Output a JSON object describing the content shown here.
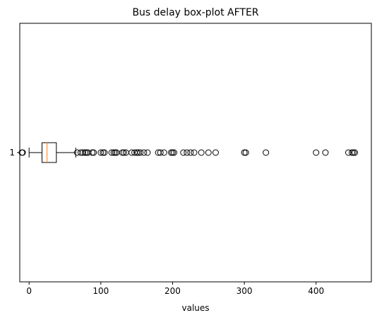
{
  "chart_data": {
    "type": "boxplot",
    "orientation": "horizontal",
    "title": "Bus delay box-plot AFTER",
    "xlabel": "values",
    "ylabel": "",
    "xlim": [
      -13,
      477
    ],
    "xticks": [
      0,
      100,
      200,
      300,
      400
    ],
    "yticks": [
      "1"
    ],
    "grid": false,
    "series": [
      {
        "category": "1",
        "whisker_low": 0,
        "q1": 18,
        "median": 25,
        "q3": 38,
        "whisker_high": 65,
        "outliers": [
          -10,
          -9,
          67,
          72,
          75,
          78,
          80,
          82,
          88,
          90,
          100,
          103,
          105,
          115,
          118,
          120,
          122,
          130,
          132,
          135,
          143,
          147,
          150,
          152,
          155,
          160,
          165,
          180,
          183,
          188,
          198,
          200,
          202,
          215,
          220,
          225,
          230,
          240,
          250,
          260,
          300,
          302,
          330,
          400,
          413,
          445,
          450,
          452,
          454
        ]
      }
    ],
    "colors": {
      "box": "#000000",
      "median": "#ff7f0e",
      "outlier_edge": "#000000"
    }
  }
}
